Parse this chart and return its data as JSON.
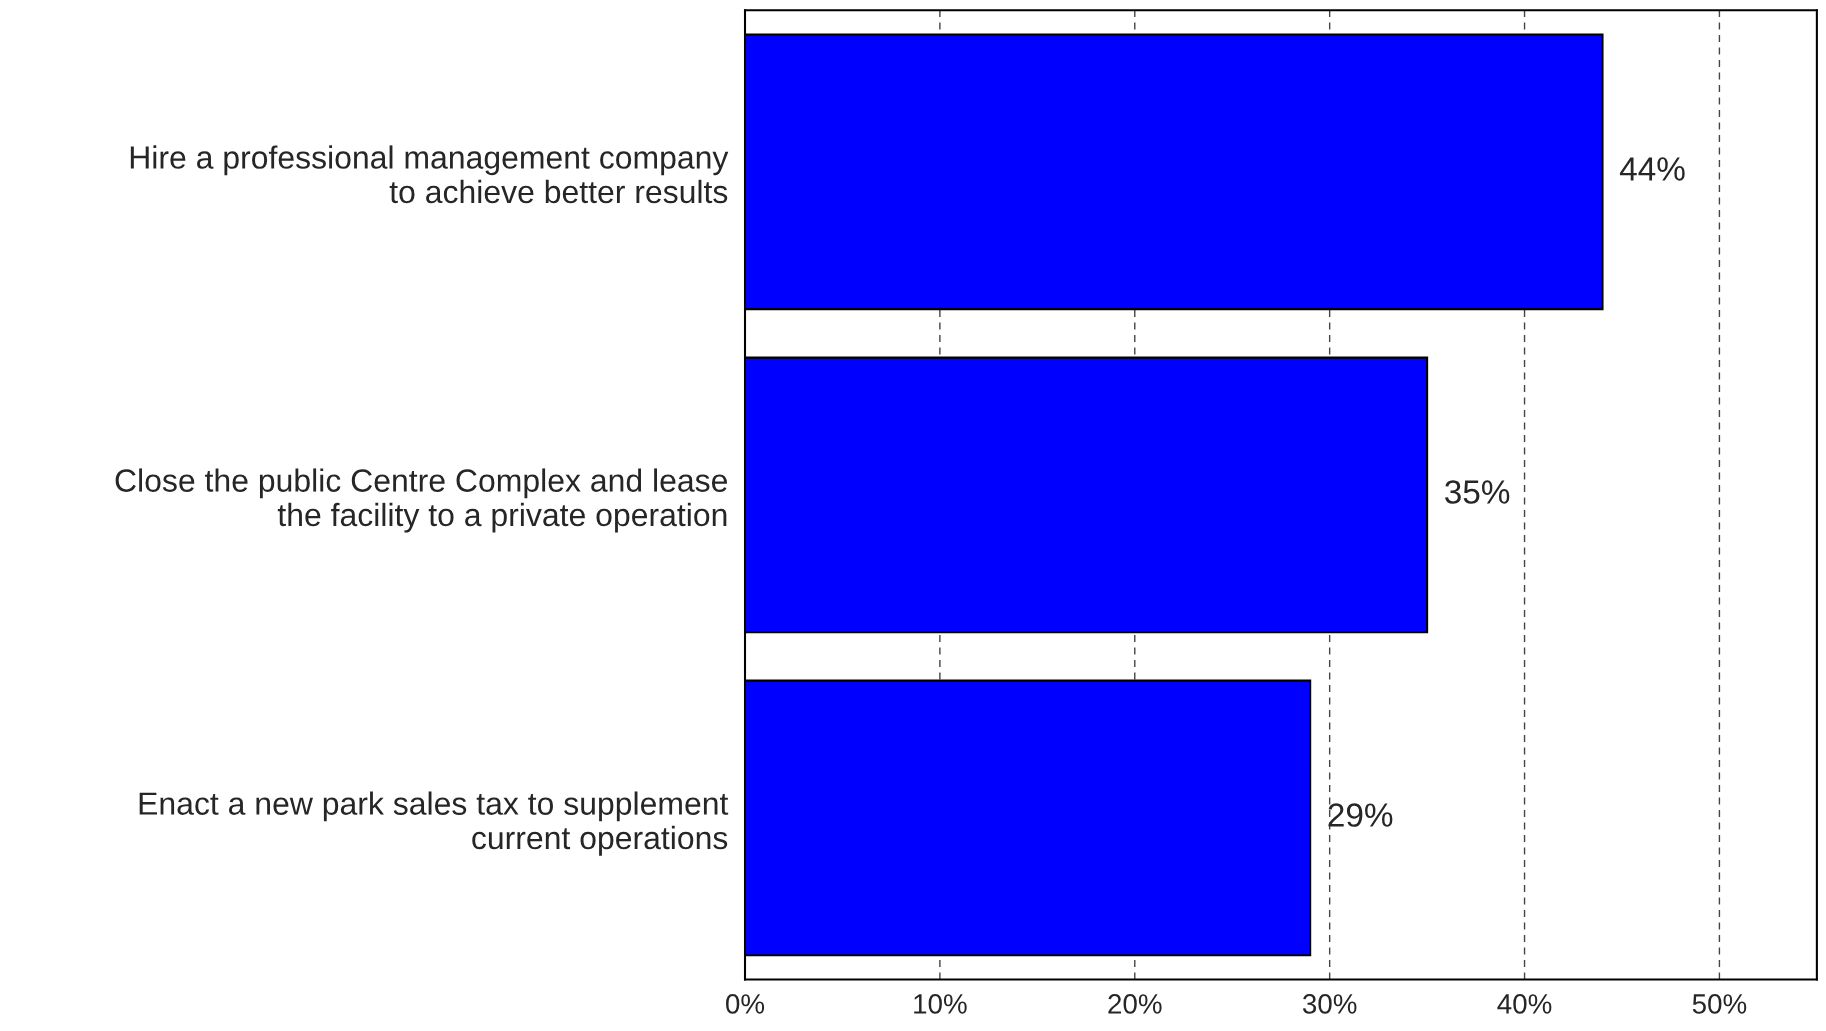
{
  "chart_data": {
    "type": "bar",
    "orientation": "horizontal",
    "categories": [
      "Hire a professional management company\nto achieve better results",
      "Close the public Centre Complex and lease\nthe facility to a private operation",
      "Enact a new park sales tax to supplement\ncurrent operations"
    ],
    "values": [
      44,
      35,
      29
    ],
    "color": "#0000ff",
    "value_labels": [
      "44%",
      "35%",
      "29%"
    ],
    "xlim": [
      0,
      55
    ],
    "xticks": [
      {
        "value": 0,
        "label": "0%"
      },
      {
        "value": 10,
        "label": "10%"
      },
      {
        "value": 20,
        "label": "20%"
      },
      {
        "value": 30,
        "label": "30%"
      },
      {
        "value": 40,
        "label": "40%"
      },
      {
        "value": 50,
        "label": "50%"
      }
    ],
    "grid": "x",
    "legend": false
  }
}
